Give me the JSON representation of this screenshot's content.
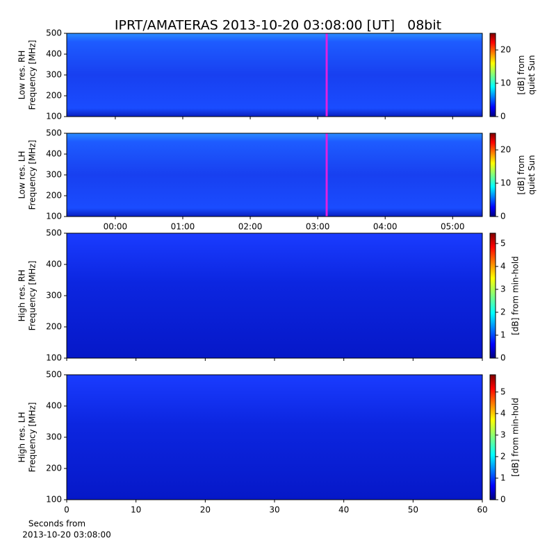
{
  "chart_data": [
    {
      "type": "spectrogram",
      "title": "IPRT/AMATERAS 2013-10-20 03:08:00 [UT]   08bit",
      "y_label": [
        "Low res. RH",
        "Frequency [MHz]"
      ],
      "ylim": [
        100,
        500
      ],
      "yticks": [
        100,
        200,
        300,
        400,
        500
      ],
      "xlim": [
        -0.72,
        5.44
      ],
      "xticks": [
        {
          "value": 0,
          "label": "00:00"
        },
        {
          "value": 1,
          "label": "01:00"
        },
        {
          "value": 2,
          "label": "02:00"
        },
        {
          "value": 3,
          "label": "03:00"
        },
        {
          "value": 4,
          "label": "04:00"
        },
        {
          "value": 5,
          "label": "05:00"
        }
      ],
      "show_xtick_labels": false,
      "marker": {
        "value": 3.133,
        "color": "#e020e0"
      },
      "colorbar": {
        "label": [
          "[dB] from",
          "quiet Sun"
        ],
        "lim": [
          0,
          25
        ],
        "ticks": [
          0,
          10,
          20
        ],
        "colormap": "jet"
      }
    },
    {
      "type": "spectrogram",
      "y_label": [
        "Low res. LH",
        "Frequency [MHz]"
      ],
      "ylim": [
        100,
        500
      ],
      "yticks": [
        100,
        200,
        300,
        400,
        500
      ],
      "xlim": [
        -0.72,
        5.44
      ],
      "xticks": [
        {
          "value": 0,
          "label": "00:00"
        },
        {
          "value": 1,
          "label": "01:00"
        },
        {
          "value": 2,
          "label": "02:00"
        },
        {
          "value": 3,
          "label": "03:00"
        },
        {
          "value": 4,
          "label": "04:00"
        },
        {
          "value": 5,
          "label": "05:00"
        }
      ],
      "show_xtick_labels": true,
      "marker": {
        "value": 3.133,
        "color": "#e020e0"
      },
      "colorbar": {
        "label": [
          "[dB] from",
          "quiet Sun"
        ],
        "lim": [
          0,
          25
        ],
        "ticks": [
          0,
          10,
          20
        ],
        "colormap": "jet"
      }
    },
    {
      "type": "spectrogram",
      "y_label": [
        "High res. RH",
        "Frequency [MHz]"
      ],
      "ylim": [
        100,
        500
      ],
      "yticks": [
        100,
        200,
        300,
        400,
        500
      ],
      "xlim": [
        0,
        60
      ],
      "xticks": [
        0,
        10,
        20,
        30,
        40,
        50,
        60
      ],
      "show_xtick_labels": false,
      "colorbar": {
        "label": [
          "[dB] from min-hold"
        ],
        "lim": [
          0,
          5.45
        ],
        "ticks": [
          0,
          1,
          2,
          3,
          4,
          5
        ],
        "colormap": "jet"
      }
    },
    {
      "type": "spectrogram",
      "y_label": [
        "High res. LH",
        "Frequency [MHz]"
      ],
      "ylim": [
        100,
        500
      ],
      "yticks": [
        100,
        200,
        300,
        400,
        500
      ],
      "xlim": [
        0,
        60
      ],
      "xticks": [
        0,
        10,
        20,
        30,
        40,
        50,
        60
      ],
      "show_xtick_labels": true,
      "x_label": [
        "Seconds from",
        "2013-10-20 03:08:00"
      ],
      "colorbar": {
        "label": [
          "[dB] from min-hold"
        ],
        "lim": [
          0,
          5.8
        ],
        "ticks": [
          0,
          1,
          2,
          3,
          4,
          5
        ],
        "colormap": "jet"
      }
    }
  ]
}
